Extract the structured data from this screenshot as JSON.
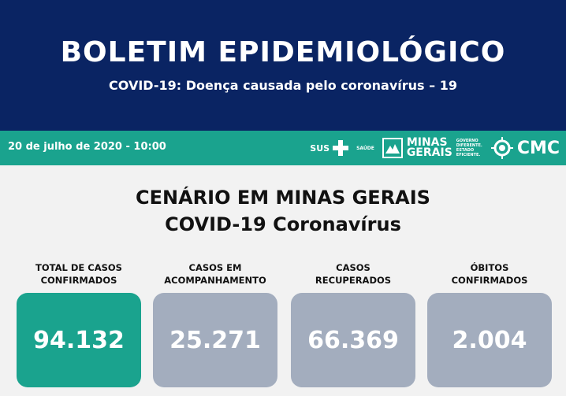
{
  "header": {
    "title": "BOLETIM EPIDEMIOLÓGICO",
    "subtitle": "COVID-19: Doença causada pelo coronavírus – 19"
  },
  "band": {
    "date": "20 de julho de 2020 - 10:00",
    "logos": {
      "sus": "SUS",
      "saude": "SAÚDE",
      "mg_line1": "MINAS",
      "mg_line2": "GERAIS",
      "mg_tag": [
        "GOVERNO",
        "DIFERENTE.",
        "ESTADO",
        "EFICIENTE."
      ],
      "cmc": "CMC"
    }
  },
  "main": {
    "heading_line1": "CENÁRIO EM MINAS GERAIS",
    "heading_line2": "COVID-19 Coronavírus",
    "stats": [
      {
        "label_line1": "TOTAL DE CASOS",
        "label_line2": "CONFIRMADOS",
        "value": "94.132",
        "color": "#1aa38e"
      },
      {
        "label_line1": "CASOS EM",
        "label_line2": "ACOMPANHAMENTO",
        "value": "25.271",
        "color": "#a3adbe"
      },
      {
        "label_line1": "CASOS",
        "label_line2": "RECUPERADOS",
        "value": "66.369",
        "color": "#a3adbe"
      },
      {
        "label_line1": "ÓBITOS",
        "label_line2": "CONFIRMADOS",
        "value": "2.004",
        "color": "#a3adbe"
      }
    ]
  }
}
